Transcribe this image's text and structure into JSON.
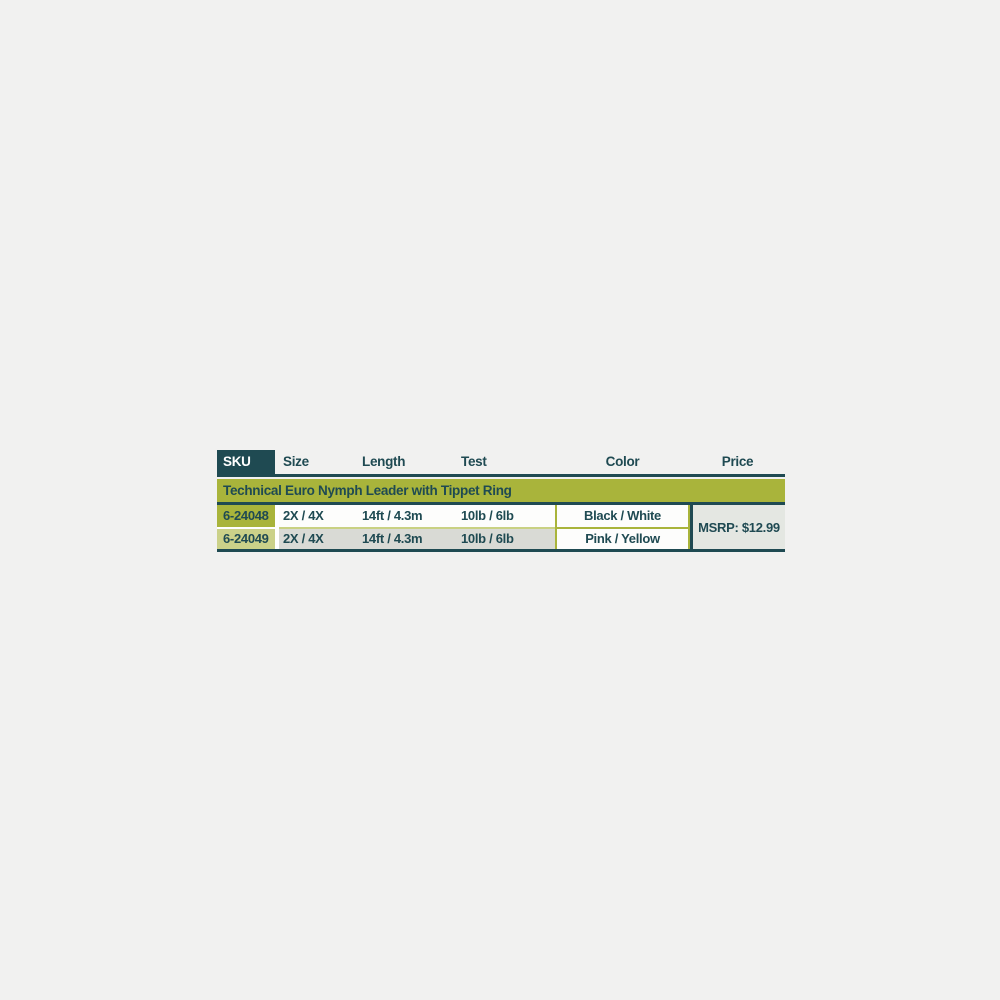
{
  "page": {
    "background_color": "#f1f1f0"
  },
  "table": {
    "columns": [
      "SKU",
      "Size",
      "Length",
      "Test",
      "Color",
      "Price"
    ],
    "product_band": "Technical Euro Nymph Leader with Tippet Ring",
    "rows": [
      {
        "sku": "6-24048",
        "size": "2X / 4X",
        "length": "14ft / 4.3m",
        "test": "10lb / 6lb",
        "color": "Black / White"
      },
      {
        "sku": "6-24049",
        "size": "2X / 4X",
        "length": "14ft / 4.3m",
        "test": "10lb / 6lb",
        "color": "Pink / Yellow"
      }
    ],
    "price": "MSRP: $12.99",
    "colors": {
      "teal": "#1f4a52",
      "olive": "#a9b43b",
      "olive_light": "#cbd189",
      "row_alt_gray": "#d9dad5",
      "msrp_bg": "#e4e7e2",
      "row_separator": "#c9d183",
      "white_cell": "#fdfdfc"
    }
  },
  "chart_data": {
    "type": "table",
    "title": "Technical Euro Nymph Leader with Tippet Ring",
    "columns": [
      "SKU",
      "Size",
      "Length",
      "Test",
      "Color",
      "Price"
    ],
    "rows": [
      [
        "6-24048",
        "2X / 4X",
        "14ft / 4.3m",
        "10lb / 6lb",
        "Black / White",
        "MSRP: $12.99"
      ],
      [
        "6-24049",
        "2X / 4X",
        "14ft / 4.3m",
        "10lb / 6lb",
        "Pink / Yellow",
        "MSRP: $12.99"
      ]
    ]
  }
}
